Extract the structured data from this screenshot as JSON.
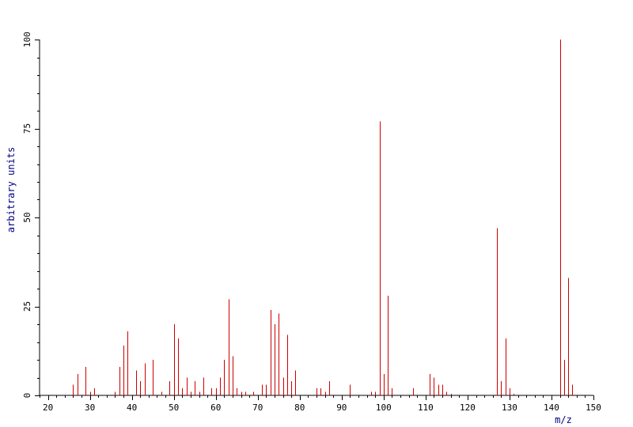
{
  "chart_data": {
    "type": "bar",
    "title": "",
    "xlabel": "m/z",
    "ylabel": "arbitrary units",
    "xlim": [
      18,
      150
    ],
    "ylim": [
      0,
      100
    ],
    "x_ticks": [
      20,
      30,
      40,
      50,
      60,
      70,
      80,
      90,
      100,
      110,
      120,
      130,
      140,
      150
    ],
    "y_ticks": [
      0,
      25,
      50,
      75,
      100
    ],
    "grid": false,
    "legend": "none",
    "colors": {
      "peaks": "#cc0000",
      "axes": "#000000",
      "axis_title": "#000080"
    },
    "series": [
      {
        "x": [
          26,
          27,
          29,
          30,
          31,
          36,
          37,
          38,
          39,
          41,
          42,
          43,
          45,
          47,
          49,
          50,
          51,
          52,
          53,
          54,
          55,
          56,
          57,
          59,
          60,
          61,
          62,
          63,
          64,
          65,
          66,
          67,
          69,
          71,
          72,
          73,
          74,
          75,
          76,
          77,
          78,
          79,
          84,
          85,
          86,
          87,
          92,
          97,
          98,
          99,
          100,
          101,
          102,
          107,
          111,
          112,
          113,
          114,
          115,
          116,
          127,
          128,
          129,
          130,
          131,
          142,
          143,
          144,
          145
        ],
        "values": [
          3,
          6,
          8,
          1,
          2,
          1,
          8,
          14,
          18,
          7,
          4,
          9,
          10,
          1,
          4,
          20,
          16,
          2,
          5,
          1,
          4,
          1,
          5,
          2,
          2,
          5,
          10,
          27,
          11,
          2,
          1,
          1,
          1,
          3,
          3,
          24,
          20,
          23,
          5,
          17,
          4,
          7,
          2,
          2,
          1,
          4,
          3,
          1,
          1,
          77,
          6,
          28,
          2,
          2,
          6,
          5,
          3,
          3,
          1,
          0.5,
          47,
          4,
          16,
          2,
          0.5,
          100,
          10,
          33,
          3
        ]
      }
    ]
  }
}
